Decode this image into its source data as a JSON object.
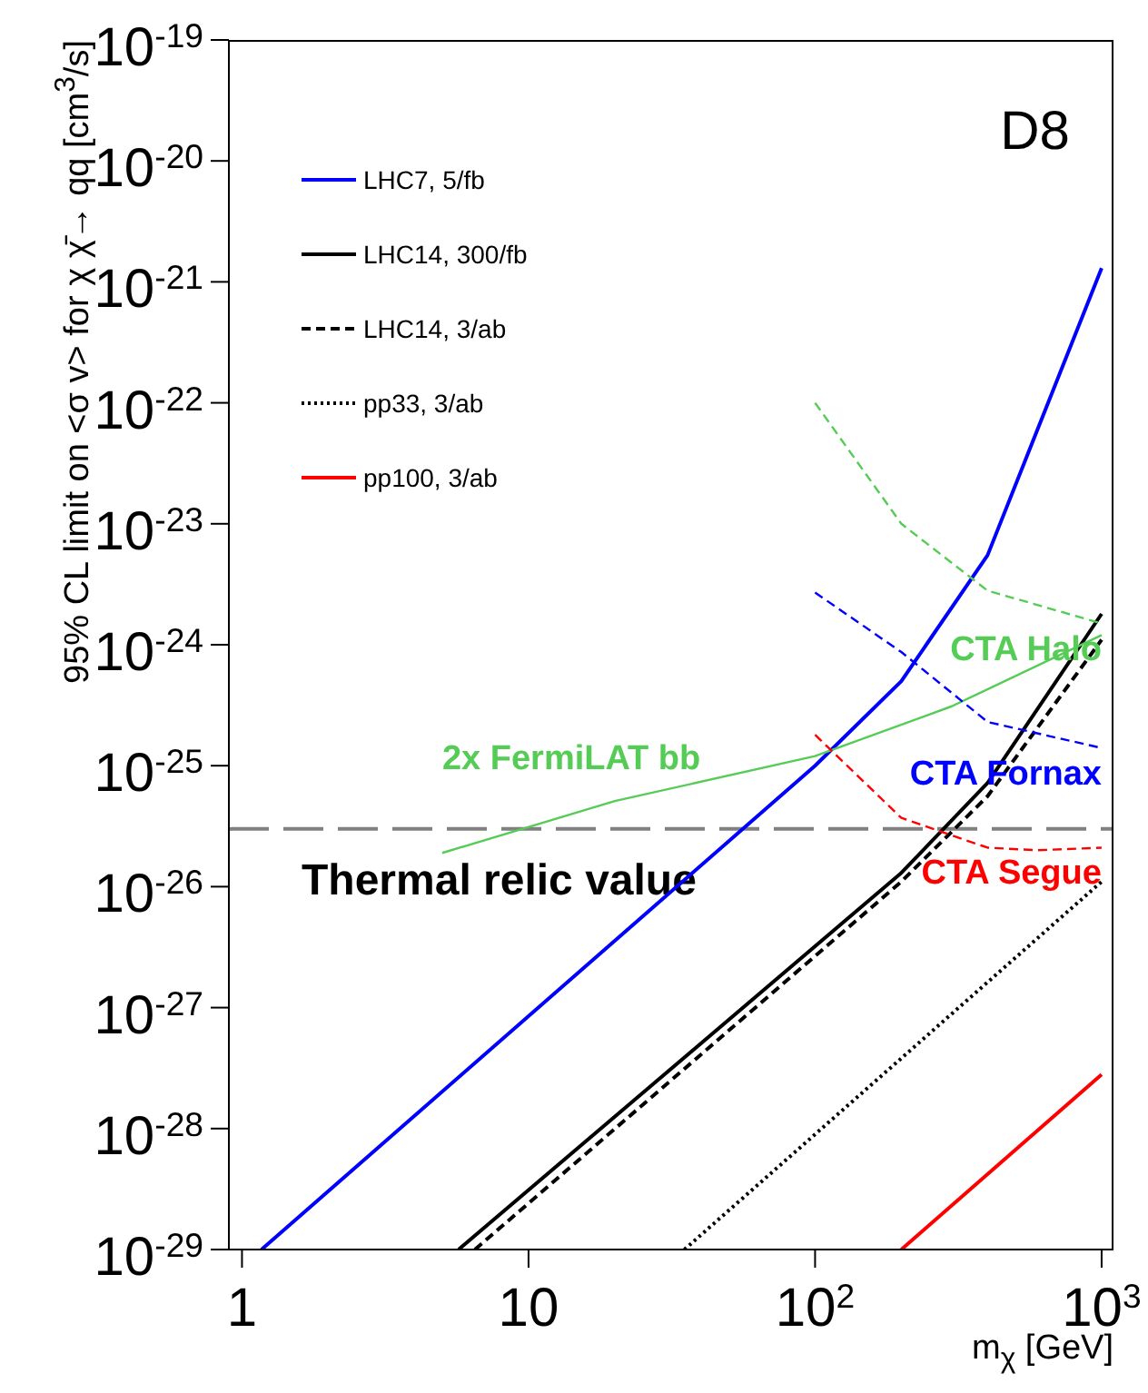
{
  "chart_data": {
    "type": "line",
    "log": "xy",
    "legend": "top left",
    "xlabel": "m$_{χ}$ [GeV]",
    "ylabel": "95% CL limit on <σ v> for χ χ̄→ qq [cm$^{3}$/s]",
    "xlim": [
      0.9,
      1100
    ],
    "xticks": [
      1,
      10,
      {
        "value": 100,
        "label": "10$^{2}$"
      },
      {
        "value": 1000,
        "label": "10$^{3}$"
      }
    ],
    "ylim": [
      1e-29,
      1e-19
    ],
    "yticks": [
      {
        "value": 1e-29,
        "label": "10$^{-29}$"
      },
      {
        "value": 1e-28,
        "label": "10$^{-28}$"
      },
      {
        "value": 1e-27,
        "label": "10$^{-27}$"
      },
      {
        "value": 1e-26,
        "label": "10$^{-26}$"
      },
      {
        "value": 1e-25,
        "label": "10$^{-25}$"
      },
      {
        "value": 1e-24,
        "label": "10$^{-24}$"
      },
      {
        "value": 1e-23,
        "label": "10$^{-23}$"
      },
      {
        "value": 1e-22,
        "label": "10$^{-22}$"
      },
      {
        "value": 1e-21,
        "label": "10$^{-21}$"
      },
      {
        "value": 1e-20,
        "label": "10$^{-20}$"
      },
      {
        "value": 1e-19,
        "label": "10$^{-19}$"
      }
    ],
    "series": [
      {
        "name": "LHC7, 5/fb",
        "color": "#0000ff",
        "line_style": "solid",
        "x": [
          1.17,
          100,
          200,
          400,
          1000
        ],
        "values": [
          1e-29,
          1e-25,
          5e-25,
          5.5e-24,
          1.3e-21
        ]
      },
      {
        "name": "LHC14, 300/fb",
        "color": "#000000",
        "line_style": "solid",
        "x": [
          5.7,
          200,
          400,
          1000
        ],
        "values": [
          1e-29,
          1.3e-26,
          7.2e-26,
          1.8e-24
        ]
      },
      {
        "name": "LHC14, 3/ab",
        "color": "#000000",
        "line_style": "dashed",
        "x": [
          6.5,
          200,
          400,
          1000
        ],
        "values": [
          1e-29,
          1.1e-26,
          5.6e-26,
          1.1e-24
        ]
      },
      {
        "name": "pp33, 3/ab",
        "color": "#000000",
        "line_style": "dotted",
        "x": [
          35,
          1000
        ],
        "values": [
          1e-29,
          1.1e-26
        ]
      },
      {
        "name": "pp100, 3/ab",
        "color": "#ff0000",
        "line_style": "solid",
        "x": [
          200,
          1000
        ],
        "values": [
          1e-29,
          2.8e-28
        ]
      },
      {
        "name": "2x FermiLAT bb",
        "color": "#55cc55",
        "line_style": "solid",
        "x": [
          5,
          20,
          100,
          300,
          1000
        ],
        "values": [
          1.9e-26,
          5.1e-26,
          1.2e-25,
          3.1e-25,
          1.2e-24
        ]
      },
      {
        "name": "CTA Halo",
        "color": "#55cc55",
        "line_style": "dashed",
        "x": [
          100,
          200,
          400,
          1000
        ],
        "values": [
          1e-22,
          1e-23,
          2.8e-24,
          1.5e-24
        ]
      },
      {
        "name": "CTA Fornax",
        "color": "#0000ff",
        "line_style": "dashed",
        "x": [
          100,
          200,
          400,
          1000
        ],
        "values": [
          2.7e-24,
          8.7e-25,
          2.3e-25,
          1.4e-25
        ]
      },
      {
        "name": "CTA Segue",
        "color": "#ff0000",
        "line_style": "dashed",
        "x": [
          100,
          200,
          400,
          600,
          1000
        ],
        "values": [
          1.8e-25,
          3.7e-26,
          2.1e-26,
          2e-26,
          2.1e-26
        ]
      }
    ],
    "ref_lines": [
      {
        "axis": "y",
        "value": 3e-26,
        "label": "Thermal relic value",
        "color": "#808080",
        "line_style": "dashed"
      }
    ],
    "annotations": [
      "D8"
    ]
  }
}
